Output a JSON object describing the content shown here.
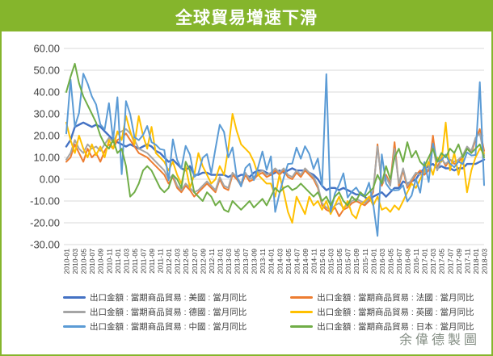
{
  "title": "全球貿易增速下滑",
  "watermark": "余偉德製圖",
  "colors": {
    "banner": "#85b52c",
    "border": "#85b52c",
    "grid": "#d9d9d9",
    "axis_text": "#404040"
  },
  "chart_data": {
    "type": "line",
    "title": "全球貿易增速下滑",
    "xlabel": "",
    "ylabel": "",
    "ylim": [
      -30,
      60
    ],
    "grid": true,
    "legend_position": "bottom",
    "y_ticks": [
      60,
      50,
      40,
      30,
      20,
      10,
      0,
      -10,
      -20,
      -30
    ],
    "x_start": "2010-01",
    "x_end": "2018-03",
    "x_frequency": "monthly",
    "x_tick_labels": [
      "2010-01",
      "2010-03",
      "2010-05",
      "2010-07",
      "2010-09",
      "2010-11",
      "2011-01",
      "2011-03",
      "2011-05",
      "2011-07",
      "2011-09",
      "2011-11",
      "2012-01",
      "2012-03",
      "2012-05",
      "2012-07",
      "2012-09",
      "2012-11",
      "2013-01",
      "2013-03",
      "2013-05",
      "2013-07",
      "2013-09",
      "2013-11",
      "2014-01",
      "2014-03",
      "2014-05",
      "2014-07",
      "2014-09",
      "2014-11",
      "2015-01",
      "2015-03",
      "2015-05",
      "2015-07",
      "2015-09",
      "2015-11",
      "2016-01",
      "2016-03",
      "2016-05",
      "2016-07",
      "2016-09",
      "2016-11",
      "2017-01",
      "2017-03",
      "2017-05",
      "2017-07",
      "2017-09",
      "2017-11",
      "2018-01",
      "2018-03"
    ],
    "series": [
      {
        "name": "出口金額 : 當期商品貿易 : 美國 : 當月同比",
        "color": "#4472C4",
        "stroke_width": 2.4,
        "legend_column": 1,
        "values": [
          15,
          18,
          24,
          25,
          26,
          25,
          24,
          25,
          24,
          22,
          20,
          18,
          17,
          16,
          15,
          16,
          15,
          14,
          15,
          16,
          15,
          13,
          12,
          10,
          8,
          9,
          7,
          5,
          4,
          6,
          2,
          2,
          3,
          3,
          2,
          2,
          2,
          2,
          1,
          2,
          1,
          2,
          2,
          1,
          3,
          4,
          4,
          3,
          2,
          3,
          4,
          3,
          4,
          5,
          4,
          4,
          4,
          3,
          2,
          0,
          -3,
          -5,
          -4,
          -4,
          -5,
          -4,
          -5,
          -6,
          -7,
          -7,
          -8,
          -10,
          -8,
          -7,
          -6,
          -8,
          -6,
          -4,
          -4,
          -1,
          -2,
          -1,
          0,
          3,
          5,
          6,
          7,
          5,
          6,
          5,
          5,
          4,
          5,
          5,
          7,
          7,
          7,
          8,
          9
        ]
      },
      {
        "name": "出口金額 : 當期商品貿易 : 法國 : 當月同比",
        "color": "#ED7D31",
        "stroke_width": 2,
        "legend_column": 2,
        "values": [
          8,
          10,
          16,
          12,
          8,
          14,
          10,
          12,
          8,
          13,
          16,
          14,
          18,
          19,
          21,
          18,
          15,
          12,
          11,
          10,
          8,
          6,
          4,
          2,
          -2,
          1,
          -4,
          -6,
          -3,
          -5,
          -8,
          -6,
          -4,
          -2,
          -4,
          -6,
          0,
          -4,
          -5,
          2,
          0,
          -3,
          2,
          -1,
          0,
          2,
          3,
          1,
          2,
          4,
          2,
          4,
          1,
          0,
          3,
          1,
          4,
          2,
          0,
          -4,
          -12,
          -14,
          -15,
          -13,
          -17,
          -14,
          -13,
          -11,
          -10,
          -11,
          -12,
          -10,
          -6,
          16,
          -3,
          2,
          -2,
          17,
          -3,
          4,
          -4,
          -1,
          2,
          4,
          2,
          4,
          20,
          5,
          10,
          6,
          9,
          7,
          8,
          10,
          14,
          12,
          18,
          23,
          13
        ]
      },
      {
        "name": "出口金額 : 當期商品貿易 : 德國 : 當月同比",
        "color": "#A5A5A5",
        "stroke_width": 2,
        "legend_column": 1,
        "values": [
          9,
          12,
          18,
          14,
          12,
          16,
          14,
          15,
          13,
          16,
          19,
          17,
          21,
          22,
          23,
          21,
          18,
          14,
          13,
          12,
          10,
          8,
          6,
          4,
          0,
          2,
          -3,
          -5,
          -2,
          -4,
          -6,
          -5,
          -3,
          -1,
          -3,
          -5,
          1,
          -3,
          -4,
          3,
          1,
          -2,
          3,
          0,
          1,
          3,
          4,
          2,
          3,
          5,
          3,
          5,
          2,
          1,
          4,
          2,
          5,
          3,
          1,
          -3,
          -11,
          -13,
          -14,
          -12,
          -11,
          -13,
          -12,
          -10,
          -9,
          -10,
          -11,
          -9,
          -5,
          15,
          -2,
          1,
          -3,
          14,
          -2,
          5,
          -3,
          0,
          3,
          2,
          3,
          5,
          16,
          4,
          9,
          7,
          9,
          8,
          9,
          11,
          15,
          13,
          19,
          21,
          11
        ]
      },
      {
        "name": "出口金額 : 當期商品貿易 : 英國 : 當月同比",
        "color": "#FFC000",
        "stroke_width": 2,
        "legend_column": 2,
        "values": [
          26,
          18,
          12,
          20,
          14,
          10,
          16,
          11,
          15,
          10,
          18,
          14,
          22,
          18,
          29,
          22,
          16,
          29,
          20,
          14,
          24,
          12,
          10,
          8,
          4,
          8,
          2,
          -2,
          6,
          -4,
          2,
          12,
          6,
          2,
          -2,
          0,
          6,
          2,
          14,
          30,
          22,
          16,
          14,
          12,
          8,
          2,
          0,
          -2,
          -2,
          -8,
          2,
          -6,
          -15,
          -20,
          -8,
          -12,
          -16,
          -8,
          -12,
          -10,
          -14,
          -10,
          -16,
          -12,
          -8,
          -14,
          -10,
          -16,
          -18,
          -12,
          -10,
          -8,
          -12,
          -8,
          -14,
          -13,
          -15,
          -12,
          -14,
          -10,
          -6,
          -2,
          -4,
          0,
          4,
          8,
          2,
          10,
          8,
          26,
          4,
          12,
          2,
          10,
          -6,
          4,
          10,
          14,
          12
        ]
      },
      {
        "name": "出口金額 : 當期商品貿易 : 中國 : 當月同比",
        "color": "#5B9BD5",
        "stroke_width": 2,
        "legend_column": 1,
        "values": [
          21,
          45.7,
          24.2,
          30.4,
          48.4,
          43.9,
          38,
          34.3,
          25.1,
          22.8,
          34.9,
          17.9,
          37.6,
          2.3,
          35.8,
          29.8,
          19.3,
          17.9,
          20.3,
          24.4,
          17,
          15.8,
          13.8,
          13.4,
          -0.5,
          18.3,
          8.8,
          4.9,
          15.3,
          11.3,
          1,
          2.7,
          9.8,
          11.5,
          2.8,
          14,
          25,
          21.7,
          10,
          14.6,
          0.9,
          -3.3,
          5.1,
          7.1,
          -0.4,
          5.6,
          12.7,
          4.3,
          10.5,
          -15,
          -6.6,
          0.8,
          7,
          7.2,
          14.5,
          9.4,
          15.1,
          11.6,
          4.7,
          9.5,
          -3.2,
          48.2,
          -15,
          -6.5,
          -2.6,
          2.7,
          -8.4,
          -5.6,
          -3.8,
          -7,
          -7.1,
          -1.6,
          -11.4,
          -26,
          11.4,
          -2,
          -4.7,
          -5.1,
          -4.9,
          -2.8,
          -10.2,
          -7.5,
          0.1,
          -6.2,
          7.9,
          -1.3,
          16.4,
          8,
          8.7,
          11.3,
          7.2,
          5.5,
          8.1,
          6.9,
          12.3,
          10.9,
          11.1,
          44.5,
          -2.7
        ]
      },
      {
        "name": "出口金額 : 當期商品貿易 : 日本 : 當月同比",
        "color": "#70AD47",
        "stroke_width": 2,
        "legend_column": 2,
        "values": [
          40,
          47,
          53,
          44,
          38,
          34,
          30,
          26,
          20,
          16,
          14,
          18,
          12,
          14,
          6,
          -8,
          -6,
          -2,
          4,
          6,
          4,
          0,
          -4,
          -6,
          -4,
          2,
          0,
          -4,
          8,
          4,
          -6,
          -8,
          -10,
          -6,
          -8,
          -12,
          -10,
          -14,
          -15,
          -10,
          -12,
          -14,
          -12,
          -10,
          -13,
          -11,
          -9,
          -12,
          -8,
          -4,
          -6,
          -4,
          -3,
          -5,
          -4,
          -2,
          -4,
          -6,
          -8,
          -6,
          -10,
          -8,
          -12,
          -8,
          -6,
          -10,
          -12,
          -8,
          -10,
          -6,
          -8,
          -6,
          -4,
          2,
          -2,
          6,
          0,
          10,
          14,
          8,
          17,
          10,
          13,
          8,
          6,
          10,
          14,
          8,
          12,
          10,
          14,
          12,
          16,
          10,
          14,
          12,
          14,
          16,
          10
        ]
      }
    ]
  }
}
